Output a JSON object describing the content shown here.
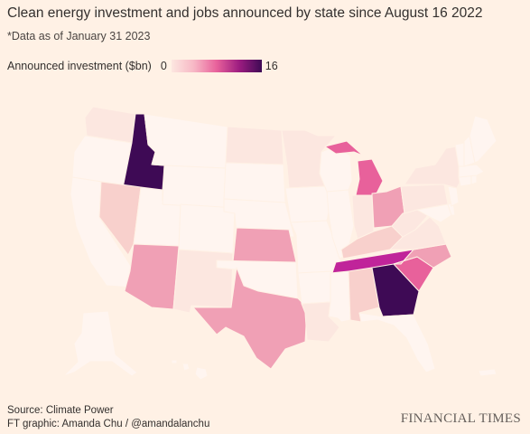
{
  "header": {
    "title": "Clean energy investment and jobs announced by state since August 16 2022",
    "subtitle": "*Data as of January 31 2023"
  },
  "legend": {
    "label": "Announced investment ($bn)",
    "min": "0",
    "max": "16",
    "colors": [
      "#FCE7E0",
      "#F7B7C5",
      "#E8619B",
      "#9C1C80",
      "#3E0A55"
    ]
  },
  "colors": {
    "background": "#FFF1E5",
    "zero": "#FFF5F0",
    "very_low": "#FCE7E0",
    "low": "#F8D0CC",
    "medium_low": "#F4B0BF",
    "medium": "#F0A0B5",
    "medium_high": "#E8619B",
    "high": "#C0249A",
    "max": "#3E0A55"
  },
  "map_data": {
    "scale_max_bn": 16,
    "state_levels": {
      "GA": "max",
      "ID": "max",
      "TN": "high",
      "MI": "medium_high",
      "SC": "medium_high",
      "TX": "medium",
      "NC": "medium",
      "OH": "medium",
      "KS": "medium",
      "AZ": "medium",
      "NV": "low",
      "AL": "low",
      "KY": "low",
      "MN": "very_low",
      "WA": "very_low",
      "IN": "very_low",
      "NM": "very_low",
      "NY": "very_low",
      "PA": "very_low",
      "LA": "very_low",
      "VA": "very_low",
      "WV": "very_low",
      "ND": "very_low"
    }
  },
  "footer": {
    "source": "Source: Climate Power",
    "credit": "FT graphic: Amanda Chu / @amandalanchu",
    "brand": "FINANCIAL TIMES"
  }
}
